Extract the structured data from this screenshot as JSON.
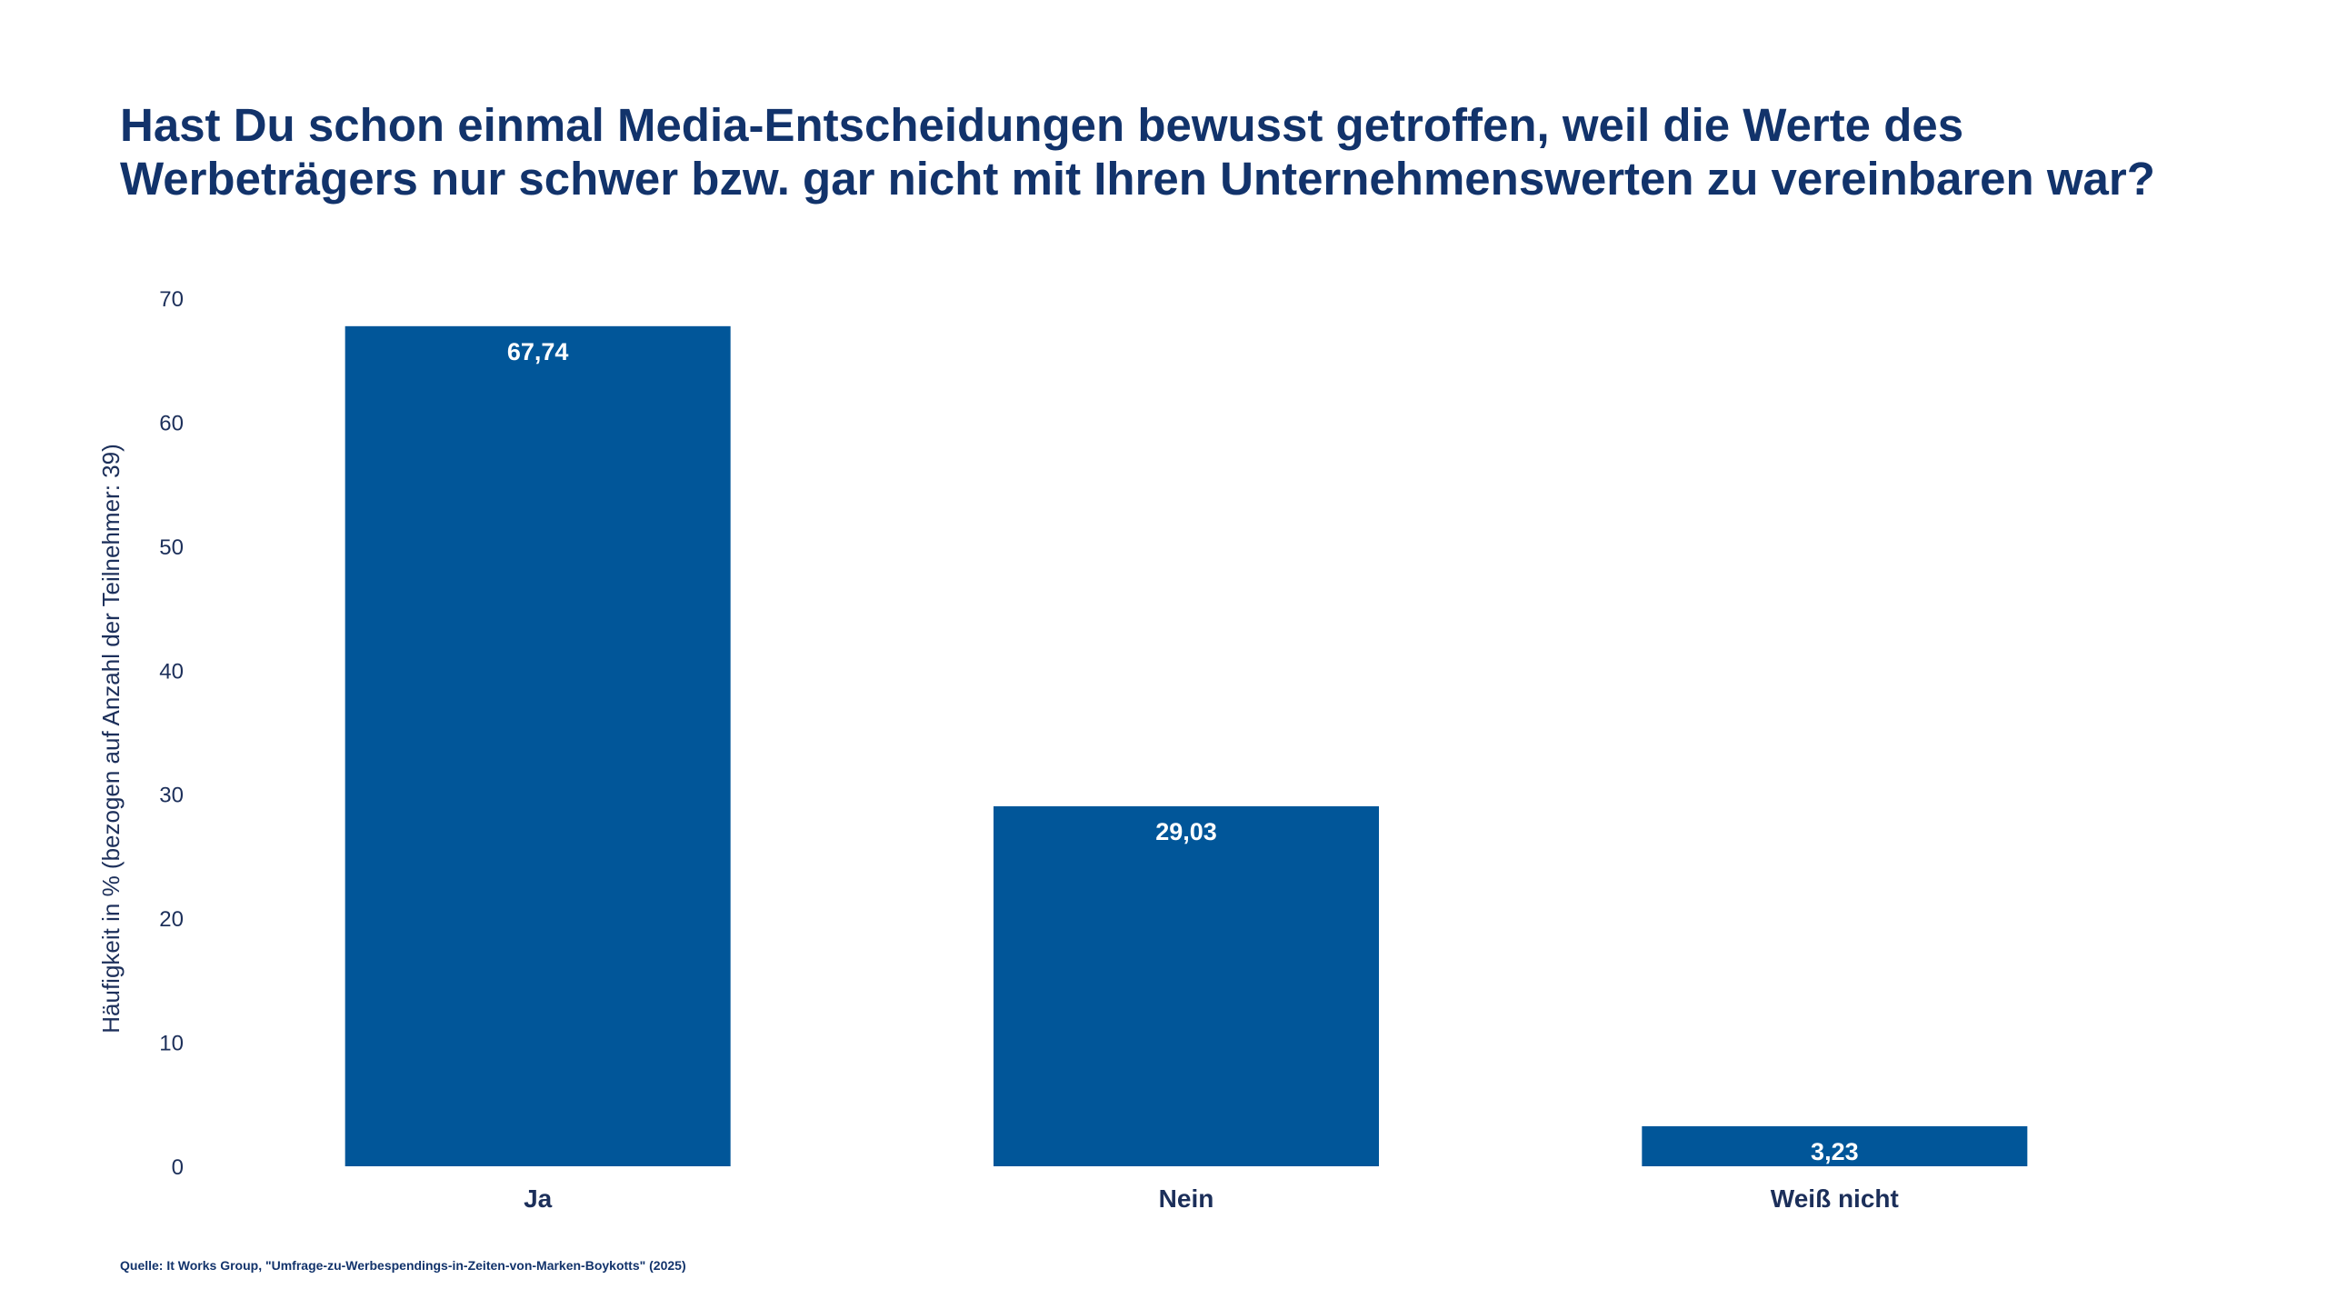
{
  "colors": {
    "bar": "#015699",
    "text": "#12336b",
    "axis_text": "#1c2f5a",
    "label": "#ffffff"
  },
  "chart_data": {
    "type": "bar",
    "title": "Hast Du schon einmal Media-Entscheidungen bewusst getroffen, weil die Werte des Werbeträgers nur schwer bzw. gar nicht mit Ihren Unternehmenswerten zu vereinbaren war?",
    "categories": [
      "Ja",
      "Nein",
      "Weiß nicht"
    ],
    "values": [
      67.74,
      29.03,
      3.23
    ],
    "value_labels": [
      "67,74",
      "29,03",
      "3,23"
    ],
    "xlabel": "",
    "ylabel": "Häufigkeit in % (bezogen auf Anzahl der Teilnehmer: 39)",
    "ylim": [
      0,
      70
    ],
    "yticks": [
      0,
      10,
      20,
      30,
      40,
      50,
      60,
      70
    ],
    "grid": false,
    "legend": "none"
  },
  "source": "Quelle: It Works Group, \"Umfrage-zu-Werbespendings-in-Zeiten-von-Marken-Boykotts\" (2025)"
}
